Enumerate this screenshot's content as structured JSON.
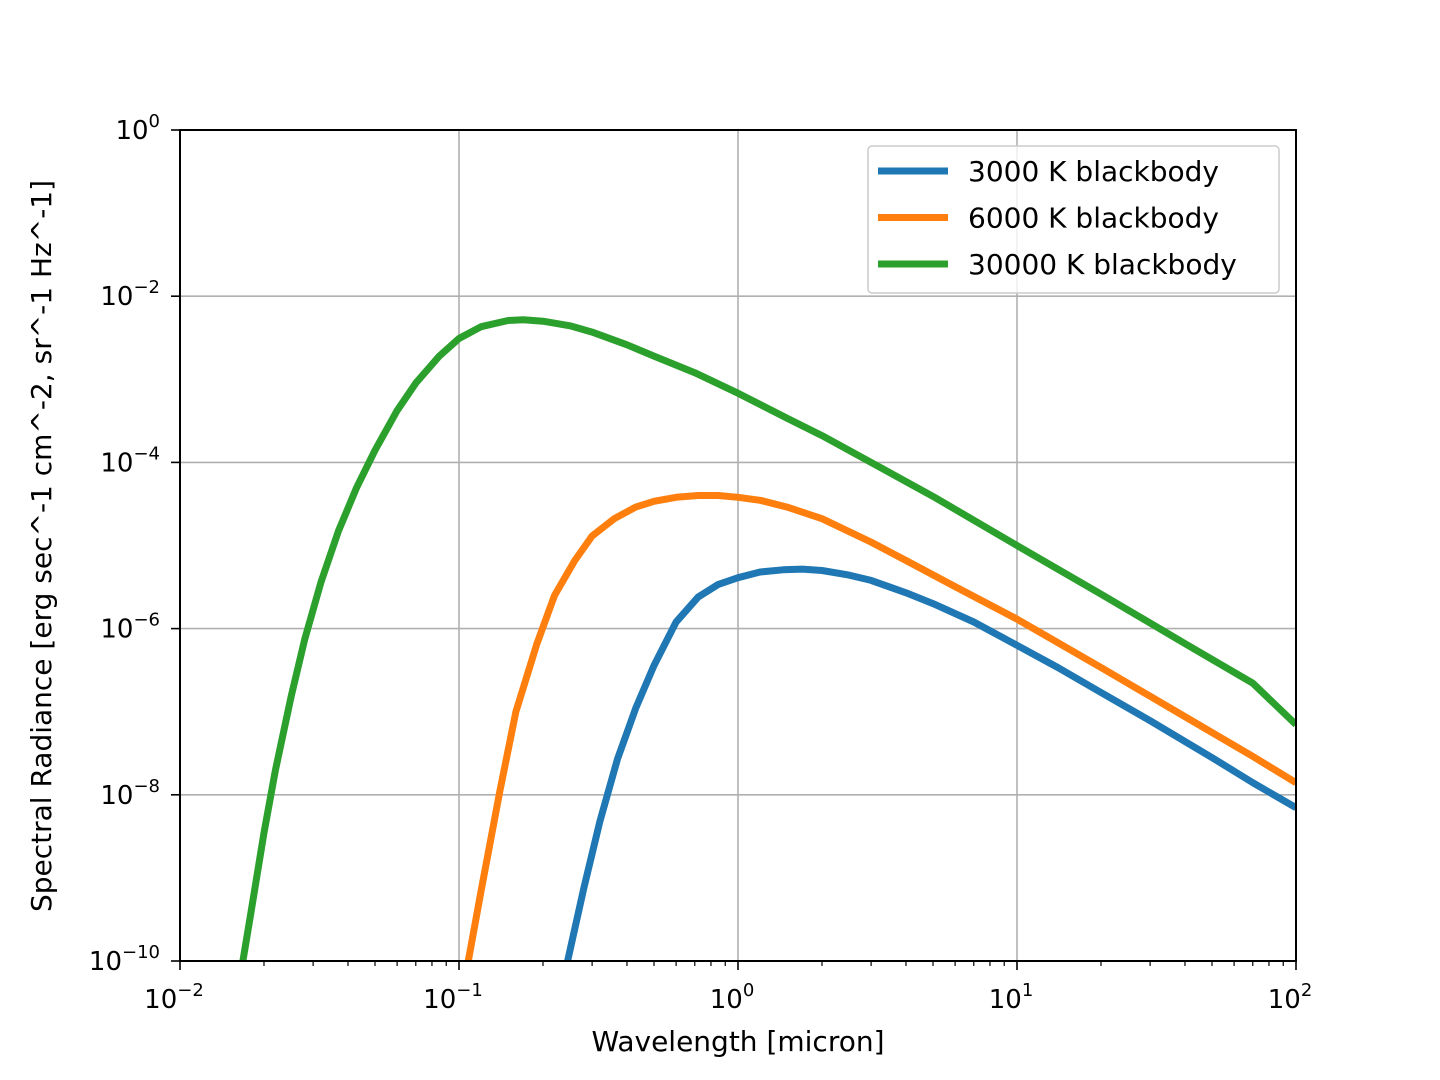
{
  "chart_data": {
    "type": "line",
    "x_scale": "log",
    "y_scale": "log",
    "xlabel": "Wavelength [micron]",
    "ylabel": "Spectral Radiance [erg sec^-1 cm^-2, sr^-1 Hz^-1]",
    "xlim": [
      0.01,
      100
    ],
    "ylim": [
      1e-10,
      1
    ],
    "x_ticks": [
      {
        "base": "10",
        "exp": "−2"
      },
      {
        "base": "10",
        "exp": "−1"
      },
      {
        "base": "10",
        "exp": "0"
      },
      {
        "base": "10",
        "exp": "1"
      },
      {
        "base": "10",
        "exp": "2"
      }
    ],
    "y_ticks": [
      {
        "base": "10",
        "exp": "−10"
      },
      {
        "base": "10",
        "exp": "−8"
      },
      {
        "base": "10",
        "exp": "−6"
      },
      {
        "base": "10",
        "exp": "−4"
      },
      {
        "base": "10",
        "exp": "−2"
      },
      {
        "base": "10",
        "exp": "0"
      }
    ],
    "grid": true,
    "legend_position": "top-right",
    "series": [
      {
        "name": "3000 K blackbody",
        "color": "#1f77b4",
        "x": [
          0.245,
          0.28,
          0.32,
          0.37,
          0.43,
          0.5,
          0.6,
          0.72,
          0.85,
          1.0,
          1.2,
          1.45,
          1.7,
          2.0,
          2.5,
          3.0,
          4.0,
          5.0,
          7.0,
          10,
          14,
          20,
          30,
          50,
          70,
          100
        ],
        "y": [
          1e-10,
          7.5e-10,
          4.8e-09,
          2.7e-08,
          1.1e-07,
          3.6e-07,
          1.2e-06,
          2.4e-06,
          3.4e-06,
          4.1e-06,
          4.8e-06,
          5.1e-06,
          5.2e-06,
          5e-06,
          4.4e-06,
          3.8e-06,
          2.7e-06,
          2e-06,
          1.2e-06,
          6.3e-07,
          3.4e-07,
          1.7e-07,
          7.8e-08,
          2.8e-08,
          1.4e-08,
          7e-09
        ]
      },
      {
        "name": "6000 K blackbody",
        "color": "#ff7f0e",
        "x": [
          0.108,
          0.12,
          0.14,
          0.16,
          0.19,
          0.22,
          0.26,
          0.3,
          0.36,
          0.43,
          0.5,
          0.6,
          0.72,
          0.85,
          1.0,
          1.2,
          1.5,
          2.0,
          3.0,
          4.0,
          6.0,
          10,
          20,
          40,
          70,
          100
        ],
        "y": [
          1e-10,
          7e-10,
          1.1e-08,
          1e-07,
          6.5e-07,
          2.5e-06,
          6.6e-06,
          1.3e-05,
          2.1e-05,
          2.9e-05,
          3.4e-05,
          3.8e-05,
          4e-05,
          4e-05,
          3.8e-05,
          3.5e-05,
          2.9e-05,
          2.1e-05,
          1.1e-05,
          6.6e-06,
          3.2e-06,
          1.3e-06,
          3.4e-07,
          8.7e-08,
          2.9e-08,
          1.4e-08
        ]
      },
      {
        "name": "30000 K blackbody",
        "color": "#2ca02c",
        "x": [
          0.0168,
          0.018,
          0.02,
          0.022,
          0.025,
          0.028,
          0.032,
          0.037,
          0.043,
          0.05,
          0.06,
          0.07,
          0.085,
          0.1,
          0.12,
          0.15,
          0.17,
          0.2,
          0.25,
          0.3,
          0.4,
          0.5,
          0.7,
          1.0,
          1.5,
          2.0,
          3.0,
          5.0,
          10,
          20,
          40,
          70,
          100
        ],
        "y": [
          1e-10,
          4e-10,
          3.5e-09,
          2e-08,
          1.5e-07,
          7.5e-07,
          3.6e-06,
          1.5e-05,
          5e-05,
          0.00014,
          0.00042,
          0.0009,
          0.0019,
          0.0031,
          0.0043,
          0.0051,
          0.0052,
          0.005,
          0.0044,
          0.0037,
          0.0026,
          0.0019,
          0.0012,
          0.00068,
          0.00034,
          0.00021,
          0.0001,
          3.9e-05,
          1e-05,
          2.6e-06,
          6.6e-07,
          2.2e-07,
          7e-08
        ]
      }
    ]
  }
}
